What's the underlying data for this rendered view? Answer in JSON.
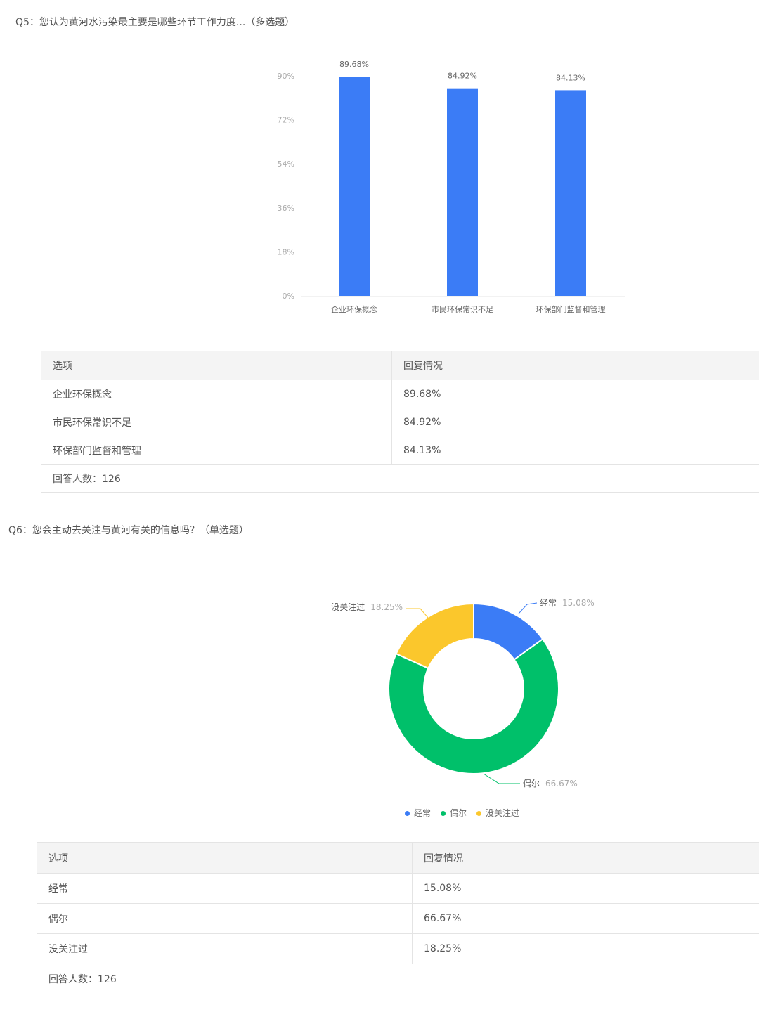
{
  "chart_data": [
    {
      "type": "bar",
      "title": "Q5：您认为黄河水污染最主要是哪些环节工作力度...（多选题）",
      "categories": [
        "企业环保概念",
        "市民环保常识不足",
        "环保部门监督和管理"
      ],
      "values": [
        89.68,
        84.92,
        84.13
      ],
      "data_labels": [
        "89.68%",
        "84.92%",
        "84.13%"
      ],
      "yticks": [
        "0%",
        "18%",
        "36%",
        "54%",
        "72%",
        "90%"
      ],
      "ylim": [
        0,
        90
      ],
      "color": "#3b7cf6",
      "grid": false
    },
    {
      "type": "pie",
      "donut": true,
      "title": "Q6：您会主动去关注与黄河有关的信息吗？（单选题）",
      "categories": [
        "经常",
        "偶尔",
        "没关注过"
      ],
      "values": [
        15.08,
        66.67,
        18.25
      ],
      "data_labels": [
        "15.08%",
        "66.67%",
        "18.25%"
      ],
      "colors": [
        "#3b7cf6",
        "#00c06a",
        "#fbc72c"
      ],
      "legend": "bottom"
    }
  ],
  "table1": {
    "headers": [
      "选项",
      "回复情况"
    ],
    "rows": [
      [
        "企业环保概念",
        "89.68%"
      ],
      [
        "市民环保常识不足",
        "84.92%"
      ],
      [
        "环保部门监督和管理",
        "84.13%"
      ]
    ],
    "footer": "回答人数：126"
  },
  "table2": {
    "headers": [
      "选项",
      "回复情况"
    ],
    "rows": [
      [
        "经常",
        "15.08%"
      ],
      [
        "偶尔",
        "66.67%"
      ],
      [
        "没关注过",
        "18.25%"
      ]
    ],
    "footer": "回答人数：126"
  }
}
